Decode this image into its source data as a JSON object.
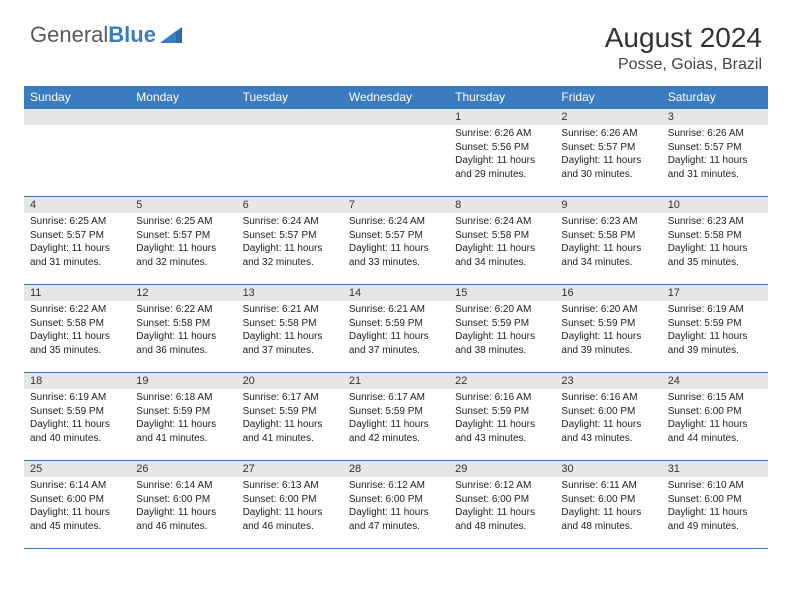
{
  "brand": {
    "part1": "General",
    "part2": "Blue"
  },
  "title": "August 2024",
  "location": "Posse, Goias, Brazil",
  "colors": {
    "header_bg": "#3b7bbf",
    "header_text": "#ffffff",
    "daynum_bg": "#e6e6e6",
    "border": "#3b7bbf",
    "body_text": "#222222",
    "page_bg": "#ffffff",
    "logo_gray": "#5a5a5a",
    "logo_blue": "#3b7bbf"
  },
  "fonts": {
    "title_pt": 28,
    "location_pt": 16,
    "th_pt": 12,
    "daynum_pt": 11,
    "cell_pt": 10,
    "logo_pt": 22
  },
  "columns": [
    "Sunday",
    "Monday",
    "Tuesday",
    "Wednesday",
    "Thursday",
    "Friday",
    "Saturday"
  ],
  "labels": {
    "sunrise": "Sunrise: ",
    "sunset": "Sunset: ",
    "daylight_prefix": "Daylight: ",
    "daylight_mid": " hours and ",
    "daylight_suffix": " minutes."
  },
  "weeks": [
    [
      null,
      null,
      null,
      null,
      {
        "n": "1",
        "rise": "6:26 AM",
        "set": "5:56 PM",
        "h": 11,
        "m": 29
      },
      {
        "n": "2",
        "rise": "6:26 AM",
        "set": "5:57 PM",
        "h": 11,
        "m": 30
      },
      {
        "n": "3",
        "rise": "6:26 AM",
        "set": "5:57 PM",
        "h": 11,
        "m": 31
      }
    ],
    [
      {
        "n": "4",
        "rise": "6:25 AM",
        "set": "5:57 PM",
        "h": 11,
        "m": 31
      },
      {
        "n": "5",
        "rise": "6:25 AM",
        "set": "5:57 PM",
        "h": 11,
        "m": 32
      },
      {
        "n": "6",
        "rise": "6:24 AM",
        "set": "5:57 PM",
        "h": 11,
        "m": 32
      },
      {
        "n": "7",
        "rise": "6:24 AM",
        "set": "5:57 PM",
        "h": 11,
        "m": 33
      },
      {
        "n": "8",
        "rise": "6:24 AM",
        "set": "5:58 PM",
        "h": 11,
        "m": 34
      },
      {
        "n": "9",
        "rise": "6:23 AM",
        "set": "5:58 PM",
        "h": 11,
        "m": 34
      },
      {
        "n": "10",
        "rise": "6:23 AM",
        "set": "5:58 PM",
        "h": 11,
        "m": 35
      }
    ],
    [
      {
        "n": "11",
        "rise": "6:22 AM",
        "set": "5:58 PM",
        "h": 11,
        "m": 35
      },
      {
        "n": "12",
        "rise": "6:22 AM",
        "set": "5:58 PM",
        "h": 11,
        "m": 36
      },
      {
        "n": "13",
        "rise": "6:21 AM",
        "set": "5:58 PM",
        "h": 11,
        "m": 37
      },
      {
        "n": "14",
        "rise": "6:21 AM",
        "set": "5:59 PM",
        "h": 11,
        "m": 37
      },
      {
        "n": "15",
        "rise": "6:20 AM",
        "set": "5:59 PM",
        "h": 11,
        "m": 38
      },
      {
        "n": "16",
        "rise": "6:20 AM",
        "set": "5:59 PM",
        "h": 11,
        "m": 39
      },
      {
        "n": "17",
        "rise": "6:19 AM",
        "set": "5:59 PM",
        "h": 11,
        "m": 39
      }
    ],
    [
      {
        "n": "18",
        "rise": "6:19 AM",
        "set": "5:59 PM",
        "h": 11,
        "m": 40
      },
      {
        "n": "19",
        "rise": "6:18 AM",
        "set": "5:59 PM",
        "h": 11,
        "m": 41
      },
      {
        "n": "20",
        "rise": "6:17 AM",
        "set": "5:59 PM",
        "h": 11,
        "m": 41
      },
      {
        "n": "21",
        "rise": "6:17 AM",
        "set": "5:59 PM",
        "h": 11,
        "m": 42
      },
      {
        "n": "22",
        "rise": "6:16 AM",
        "set": "5:59 PM",
        "h": 11,
        "m": 43
      },
      {
        "n": "23",
        "rise": "6:16 AM",
        "set": "6:00 PM",
        "h": 11,
        "m": 43
      },
      {
        "n": "24",
        "rise": "6:15 AM",
        "set": "6:00 PM",
        "h": 11,
        "m": 44
      }
    ],
    [
      {
        "n": "25",
        "rise": "6:14 AM",
        "set": "6:00 PM",
        "h": 11,
        "m": 45
      },
      {
        "n": "26",
        "rise": "6:14 AM",
        "set": "6:00 PM",
        "h": 11,
        "m": 46
      },
      {
        "n": "27",
        "rise": "6:13 AM",
        "set": "6:00 PM",
        "h": 11,
        "m": 46
      },
      {
        "n": "28",
        "rise": "6:12 AM",
        "set": "6:00 PM",
        "h": 11,
        "m": 47
      },
      {
        "n": "29",
        "rise": "6:12 AM",
        "set": "6:00 PM",
        "h": 11,
        "m": 48
      },
      {
        "n": "30",
        "rise": "6:11 AM",
        "set": "6:00 PM",
        "h": 11,
        "m": 48
      },
      {
        "n": "31",
        "rise": "6:10 AM",
        "set": "6:00 PM",
        "h": 11,
        "m": 49
      }
    ]
  ]
}
